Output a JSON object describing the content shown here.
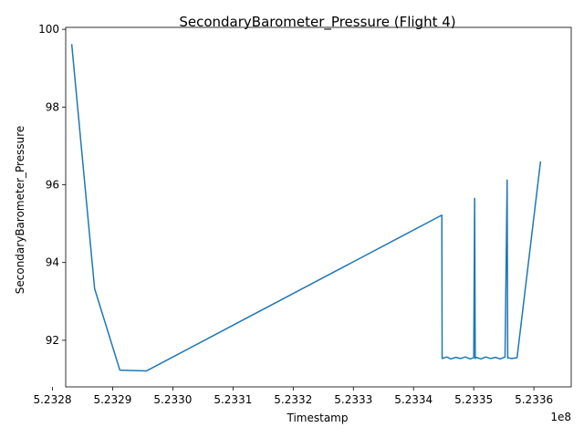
{
  "chart_data": {
    "type": "line",
    "title": "SecondaryBarometer_Pressure (Flight 4)",
    "xlabel": "Timestamp",
    "ylabel": "SecondaryBarometer_Pressure",
    "x_offset_label": "1e8",
    "xlim": [
      5.232822,
      5.233662
    ],
    "ylim": [
      90.8,
      100.05
    ],
    "x_ticks": [
      5.2328,
      5.2329,
      5.233,
      5.2331,
      5.2332,
      5.2333,
      5.2334,
      5.2335,
      5.2336
    ],
    "x_tick_labels": [
      "5.2328",
      "5.2329",
      "5.2330",
      "5.2331",
      "5.2332",
      "5.2333",
      "5.2334",
      "5.2335",
      "5.2336"
    ],
    "y_ticks": [
      92,
      94,
      96,
      98,
      100
    ],
    "y_tick_labels": [
      "92",
      "94",
      "96",
      "98",
      "100"
    ],
    "grid": false,
    "legend": "none",
    "series": [
      {
        "color": "#1f77b4",
        "x": [
          5.232832,
          5.23287,
          5.232912,
          5.232956,
          5.233447,
          5.2334475,
          5.233455,
          5.233462,
          5.23347,
          5.233478,
          5.233486,
          5.233494,
          5.2335,
          5.2335015,
          5.2335025,
          5.233504,
          5.233512,
          5.23352,
          5.233528,
          5.233536,
          5.233544,
          5.233552,
          5.2335555,
          5.2335565,
          5.2335575,
          5.233563,
          5.233572,
          5.233611
        ],
        "y": [
          99.62,
          93.33,
          91.23,
          91.21,
          95.22,
          91.53,
          91.57,
          91.52,
          91.56,
          91.53,
          91.57,
          91.52,
          91.55,
          95.65,
          91.53,
          91.56,
          91.52,
          91.57,
          91.53,
          91.56,
          91.52,
          91.57,
          96.12,
          91.54,
          91.55,
          91.53,
          91.55,
          96.6
        ]
      }
    ]
  }
}
